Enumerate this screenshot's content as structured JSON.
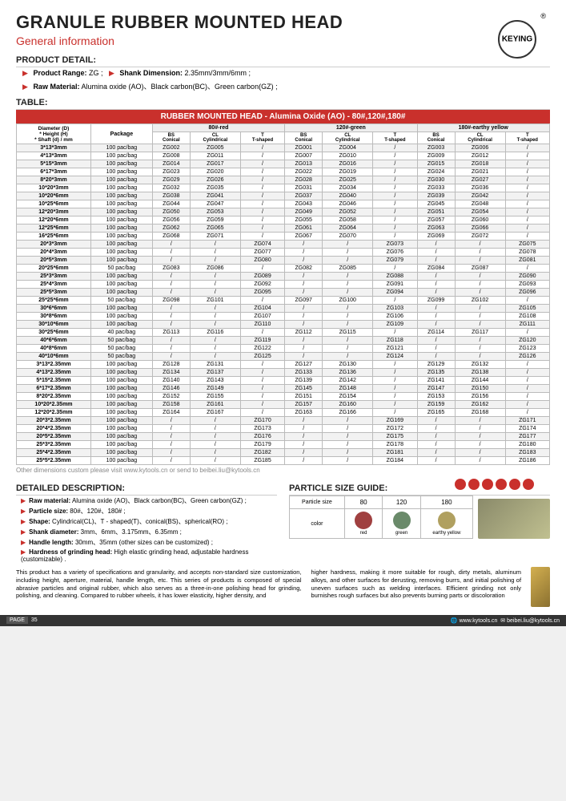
{
  "brand": "KEYING",
  "title": "GRANULE RUBBER MOUNTED HEAD",
  "subtitle": "General information",
  "sections": {
    "detail": "PRODUCT DETAIL:",
    "table": "TABLE:",
    "desc": "DETAILED DESCRIPTION:",
    "particle": "PARTICLE SIZE GUIDE:"
  },
  "detail_lines": {
    "range_label": "Product Range:",
    "range_val": "ZG ;",
    "shank_label": "Shank Dimension:",
    "shank_val": "2.35mm/3mm/6mm ;",
    "raw_label": "Raw Material:",
    "raw_val": "Alumina oxide (AO)、Black carbon(BC)、Green carbon(GZ) ;"
  },
  "table_title": "RUBBER MOUNTED HEAD - Alumina Oxide (AO) - 80#,120#,180#",
  "col_dim": "Diameter (D)\n* Height (H)\n* Shaft (d) / mm",
  "col_pkg": "Package",
  "groups": [
    {
      "name": "80#-red",
      "cols": [
        "BS\nConical",
        "CL\nCylindrical",
        "T\nT-shaped"
      ]
    },
    {
      "name": "120#-green",
      "cols": [
        "BS\nConical",
        "CL\nCylindrical",
        "T\nT-shaped"
      ]
    },
    {
      "name": "180#-earthy yellow",
      "cols": [
        "BS\nConical",
        "CL\nCylindrical",
        "T\nT-shaped"
      ]
    }
  ],
  "rows": [
    {
      "d": "3*13*3mm",
      "p": "100 pac/bag",
      "v": [
        "ZG002",
        "ZG005",
        "/",
        "ZG001",
        "ZG004",
        "/",
        "ZG003",
        "ZG006",
        "/"
      ]
    },
    {
      "d": "4*13*3mm",
      "p": "100 pac/bag",
      "v": [
        "ZG008",
        "ZG011",
        "/",
        "ZG007",
        "ZG010",
        "/",
        "ZG009",
        "ZG012",
        "/"
      ]
    },
    {
      "d": "5*15*3mm",
      "p": "100 pac/bag",
      "v": [
        "ZG014",
        "ZG017",
        "/",
        "ZG013",
        "ZG016",
        "/",
        "ZG015",
        "ZG018",
        "/"
      ]
    },
    {
      "d": "6*17*3mm",
      "p": "100 pac/bag",
      "v": [
        "ZG023",
        "ZG020",
        "/",
        "ZG022",
        "ZG019",
        "/",
        "ZG024",
        "ZG021",
        "/"
      ]
    },
    {
      "d": "8*20*3mm",
      "p": "100 pac/bag",
      "v": [
        "ZG029",
        "ZG026",
        "/",
        "ZG028",
        "ZG025",
        "/",
        "ZG030",
        "ZG027",
        "/"
      ]
    },
    {
      "d": "10*20*3mm",
      "p": "100 pac/bag",
      "v": [
        "ZG032",
        "ZG035",
        "/",
        "ZG031",
        "ZG034",
        "/",
        "ZG033",
        "ZG036",
        "/"
      ]
    },
    {
      "d": "10*20*6mm",
      "p": "100 pac/bag",
      "v": [
        "ZG038",
        "ZG041",
        "/",
        "ZG037",
        "ZG040",
        "/",
        "ZG039",
        "ZG042",
        "/"
      ]
    },
    {
      "d": "10*25*6mm",
      "p": "100 pac/bag",
      "v": [
        "ZG044",
        "ZG047",
        "/",
        "ZG043",
        "ZG046",
        "/",
        "ZG045",
        "ZG048",
        "/"
      ]
    },
    {
      "d": "12*20*3mm",
      "p": "100 pac/bag",
      "v": [
        "ZG050",
        "ZG053",
        "/",
        "ZG049",
        "ZG052",
        "/",
        "ZG051",
        "ZG054",
        "/"
      ]
    },
    {
      "d": "12*20*6mm",
      "p": "100 pac/bag",
      "v": [
        "ZG056",
        "ZG059",
        "/",
        "ZG055",
        "ZG058",
        "/",
        "ZG057",
        "ZG060",
        "/"
      ]
    },
    {
      "d": "12*25*6mm",
      "p": "100 pac/bag",
      "v": [
        "ZG062",
        "ZG065",
        "/",
        "ZG061",
        "ZG064",
        "/",
        "ZG063",
        "ZG066",
        "/"
      ]
    },
    {
      "d": "16*25*6mm",
      "p": "100 pac/bag",
      "v": [
        "ZG068",
        "ZG071",
        "/",
        "ZG067",
        "ZG070",
        "/",
        "ZG069",
        "ZG072",
        "/"
      ]
    },
    {
      "d": "20*3*3mm",
      "p": "100 pac/bag",
      "v": [
        "/",
        "/",
        "ZG074",
        "/",
        "/",
        "ZG073",
        "/",
        "/",
        "ZG075"
      ]
    },
    {
      "d": "20*4*3mm",
      "p": "100 pac/bag",
      "v": [
        "/",
        "/",
        "ZG077",
        "/",
        "/",
        "ZG076",
        "/",
        "/",
        "ZG078"
      ]
    },
    {
      "d": "20*5*3mm",
      "p": "100 pac/bag",
      "v": [
        "/",
        "/",
        "ZG080",
        "/",
        "/",
        "ZG079",
        "/",
        "/",
        "ZG081"
      ]
    },
    {
      "d": "20*25*6mm",
      "p": "50 pac/bag",
      "v": [
        "ZG083",
        "ZG086",
        "/",
        "ZG082",
        "ZG085",
        "/",
        "ZG084",
        "ZG087",
        "/"
      ]
    },
    {
      "d": "25*3*3mm",
      "p": "100 pac/bag",
      "v": [
        "/",
        "/",
        "ZG089",
        "/",
        "/",
        "ZG088",
        "/",
        "/",
        "ZG090"
      ]
    },
    {
      "d": "25*4*3mm",
      "p": "100 pac/bag",
      "v": [
        "/",
        "/",
        "ZG092",
        "/",
        "/",
        "ZG091",
        "/",
        "/",
        "ZG093"
      ]
    },
    {
      "d": "25*5*3mm",
      "p": "100 pac/bag",
      "v": [
        "/",
        "/",
        "ZG095",
        "/",
        "/",
        "ZG094",
        "/",
        "/",
        "ZG096"
      ]
    },
    {
      "d": "25*25*6mm",
      "p": "50 pac/bag",
      "v": [
        "ZG098",
        "ZG101",
        "/",
        "ZG097",
        "ZG100",
        "/",
        "ZG099",
        "ZG102",
        "/"
      ]
    },
    {
      "d": "30*6*6mm",
      "p": "100 pac/bag",
      "v": [
        "/",
        "/",
        "ZG104",
        "/",
        "/",
        "ZG103",
        "/",
        "/",
        "ZG105"
      ]
    },
    {
      "d": "30*8*6mm",
      "p": "100 pac/bag",
      "v": [
        "/",
        "/",
        "ZG107",
        "/",
        "/",
        "ZG106",
        "/",
        "/",
        "ZG108"
      ]
    },
    {
      "d": "30*10*6mm",
      "p": "100 pac/bag",
      "v": [
        "/",
        "/",
        "ZG110",
        "/",
        "/",
        "ZG109",
        "/",
        "/",
        "ZG111"
      ]
    },
    {
      "d": "30*25*6mm",
      "p": "40 pac/bag",
      "v": [
        "ZG113",
        "ZG116",
        "/",
        "ZG112",
        "ZG115",
        "/",
        "ZG114",
        "ZG117",
        "/"
      ]
    },
    {
      "d": "40*6*6mm",
      "p": "50 pac/bag",
      "v": [
        "/",
        "/",
        "ZG119",
        "/",
        "/",
        "ZG118",
        "/",
        "/",
        "ZG120"
      ]
    },
    {
      "d": "40*8*6mm",
      "p": "50 pac/bag",
      "v": [
        "/",
        "/",
        "ZG122",
        "/",
        "/",
        "ZG121",
        "/",
        "/",
        "ZG123"
      ]
    },
    {
      "d": "40*10*6mm",
      "p": "50 pac/bag",
      "v": [
        "/",
        "/",
        "ZG125",
        "/",
        "/",
        "ZG124",
        "/",
        "/",
        "ZG126"
      ]
    },
    {
      "d": "3*13*2.35mm",
      "p": "100 pac/bag",
      "v": [
        "ZG128",
        "ZG131",
        "/",
        "ZG127",
        "ZG130",
        "/",
        "ZG129",
        "ZG132",
        "/"
      ]
    },
    {
      "d": "4*13*2.35mm",
      "p": "100 pac/bag",
      "v": [
        "ZG134",
        "ZG137",
        "/",
        "ZG133",
        "ZG136",
        "/",
        "ZG135",
        "ZG138",
        "/"
      ]
    },
    {
      "d": "5*15*2.35mm",
      "p": "100 pac/bag",
      "v": [
        "ZG140",
        "ZG143",
        "/",
        "ZG139",
        "ZG142",
        "/",
        "ZG141",
        "ZG144",
        "/"
      ]
    },
    {
      "d": "6*17*2.35mm",
      "p": "100 pac/bag",
      "v": [
        "ZG146",
        "ZG149",
        "/",
        "ZG145",
        "ZG148",
        "/",
        "ZG147",
        "ZG150",
        "/"
      ]
    },
    {
      "d": "8*20*2.35mm",
      "p": "100 pac/bag",
      "v": [
        "ZG152",
        "ZG155",
        "/",
        "ZG151",
        "ZG154",
        "/",
        "ZG153",
        "ZG156",
        "/"
      ]
    },
    {
      "d": "10*20*2.35mm",
      "p": "100 pac/bag",
      "v": [
        "ZG158",
        "ZG161",
        "/",
        "ZG157",
        "ZG160",
        "/",
        "ZG159",
        "ZG162",
        "/"
      ]
    },
    {
      "d": "12*20*2.35mm",
      "p": "100 pac/bag",
      "v": [
        "ZG164",
        "ZG167",
        "/",
        "ZG163",
        "ZG166",
        "/",
        "ZG165",
        "ZG168",
        "/"
      ]
    },
    {
      "d": "20*3*2.35mm",
      "p": "100 pac/bag",
      "v": [
        "/",
        "/",
        "ZG170",
        "/",
        "/",
        "ZG169",
        "/",
        "/",
        "ZG171"
      ]
    },
    {
      "d": "20*4*2.35mm",
      "p": "100 pac/bag",
      "v": [
        "/",
        "/",
        "ZG173",
        "/",
        "/",
        "ZG172",
        "/",
        "/",
        "ZG174"
      ]
    },
    {
      "d": "20*5*2.35mm",
      "p": "100 pac/bag",
      "v": [
        "/",
        "/",
        "ZG176",
        "/",
        "/",
        "ZG175",
        "/",
        "/",
        "ZG177"
      ]
    },
    {
      "d": "25*3*2.35mm",
      "p": "100 pac/bag",
      "v": [
        "/",
        "/",
        "ZG179",
        "/",
        "/",
        "ZG178",
        "/",
        "/",
        "ZG180"
      ]
    },
    {
      "d": "25*4*2.35mm",
      "p": "100 pac/bag",
      "v": [
        "/",
        "/",
        "ZG182",
        "/",
        "/",
        "ZG181",
        "/",
        "/",
        "ZG183"
      ]
    },
    {
      "d": "25*5*2.35mm",
      "p": "100 pac/bag",
      "v": [
        "/",
        "/",
        "ZG185",
        "/",
        "/",
        "ZG184",
        "/",
        "/",
        "ZG186"
      ]
    }
  ],
  "foot_note": "Other dimensions custom please visit www.kytools.cn or send to beibei.liu@kytools.cn",
  "desc_lines": [
    {
      "l": "Raw material:",
      "v": "Alumina oxide (AO)、Black carbon(BC)、Green carbon(GZ) ;"
    },
    {
      "l": "Particle size:",
      "v": "80#、120#、180# ;"
    },
    {
      "l": "Shape:",
      "v": "Cylindrical(CL)、T - shaped(T)、conical(BS)、spherical(RO) ;"
    },
    {
      "l": "Shank diameter:",
      "v": "3mm、6mm、3.175mm、6.35mm ;"
    },
    {
      "l": "Handle length:",
      "v": "30mm、35mm (other sizes can be customized) ;"
    },
    {
      "l": "Hardness of grinding head:",
      "v": "High elastic grinding head, adjustable hardness (customizable) ."
    }
  ],
  "particle": {
    "h1": "Particle size",
    "h2": "color",
    "sizes": [
      "80",
      "120",
      "180"
    ],
    "labels": [
      "red",
      "green",
      "earthy yellow"
    ],
    "colors": [
      "#a04040",
      "#6a8a6a",
      "#b0a060"
    ]
  },
  "para1": "This product has a variety of specifications and granularity, and accepts non-standard size customization, including height, aperture, material, handle length, etc. This series of products is composed of special abrasive particles and original rubber, which also serves as a three-in-one polishing head for grinding, polishing, and cleaning. Compared to rubber wheels, it has lower elasticity, higher density, and",
  "para2": "higher hardness, making it more suitable for rough, dirty metals, aluminum alloys, and other surfaces for derusting, removing burrs, and initial polishing of uneven surfaces such as welding interfaces. Efficient grinding not only burnishes rough surfaces but also prevents burning parts or discoloration",
  "footer": {
    "page": "PAGE",
    "num": "35",
    "web": "www.kytools.cn",
    "mail": "beibei.liu@kytools.cn"
  }
}
